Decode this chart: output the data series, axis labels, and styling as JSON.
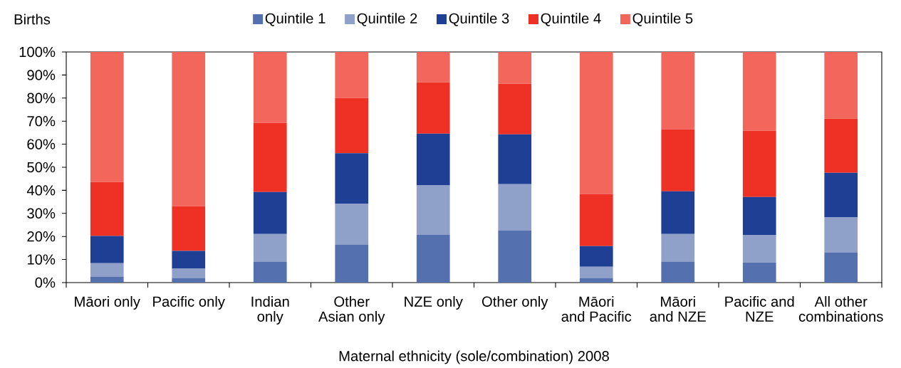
{
  "chart_data": {
    "type": "bar",
    "stacked": true,
    "ylabel": "Births",
    "xlabel": "Maternal ethnicity (sole/combination) 2008",
    "legend": "top",
    "categories": [
      "Māori only",
      "Pacific only",
      "Indian\nonly",
      "Other\nAsian only",
      "NZE only",
      "Other only",
      "Māori\nand Pacific",
      "Māori\nand NZE",
      "Pacific and\nNZE",
      "All other\ncombinations"
    ],
    "series": [
      {
        "name": "Quintile 1",
        "color": "#5470ae",
        "values": [
          2.6,
          2.0,
          9.1,
          16.5,
          20.8,
          22.5,
          2.0,
          9.1,
          8.7,
          13.1
        ]
      },
      {
        "name": "Quintile 2",
        "color": "#8fa0c9",
        "values": [
          5.8,
          4.0,
          12.0,
          17.6,
          21.3,
          20.2,
          4.9,
          12.0,
          11.8,
          15.1
        ]
      },
      {
        "name": "Quintile 3",
        "color": "#1e3f93",
        "values": [
          11.8,
          7.7,
          18.2,
          22.0,
          22.5,
          21.6,
          8.9,
          18.5,
          16.6,
          19.4
        ]
      },
      {
        "name": "Quintile 4",
        "color": "#ee3124",
        "values": [
          23.4,
          19.4,
          29.9,
          23.9,
          22.2,
          21.9,
          22.6,
          26.9,
          28.7,
          23.5
        ]
      },
      {
        "name": "Quintile 5",
        "color": "#f2665b",
        "values": [
          56.4,
          66.9,
          30.8,
          20.0,
          13.2,
          13.8,
          61.6,
          33.5,
          34.2,
          28.9
        ]
      }
    ],
    "ylim": [
      0,
      100
    ],
    "yticks": [
      {
        "value": 0,
        "label": "0%"
      },
      {
        "value": 10,
        "label": "10%"
      },
      {
        "value": 20,
        "label": "20%"
      },
      {
        "value": 30,
        "label": "30%"
      },
      {
        "value": 40,
        "label": "40%"
      },
      {
        "value": 50,
        "label": "50%"
      },
      {
        "value": 60,
        "label": "60%"
      },
      {
        "value": 70,
        "label": "70%"
      },
      {
        "value": 80,
        "label": "80%"
      },
      {
        "value": 90,
        "label": "90%"
      },
      {
        "value": 100,
        "label": "100%"
      }
    ]
  }
}
